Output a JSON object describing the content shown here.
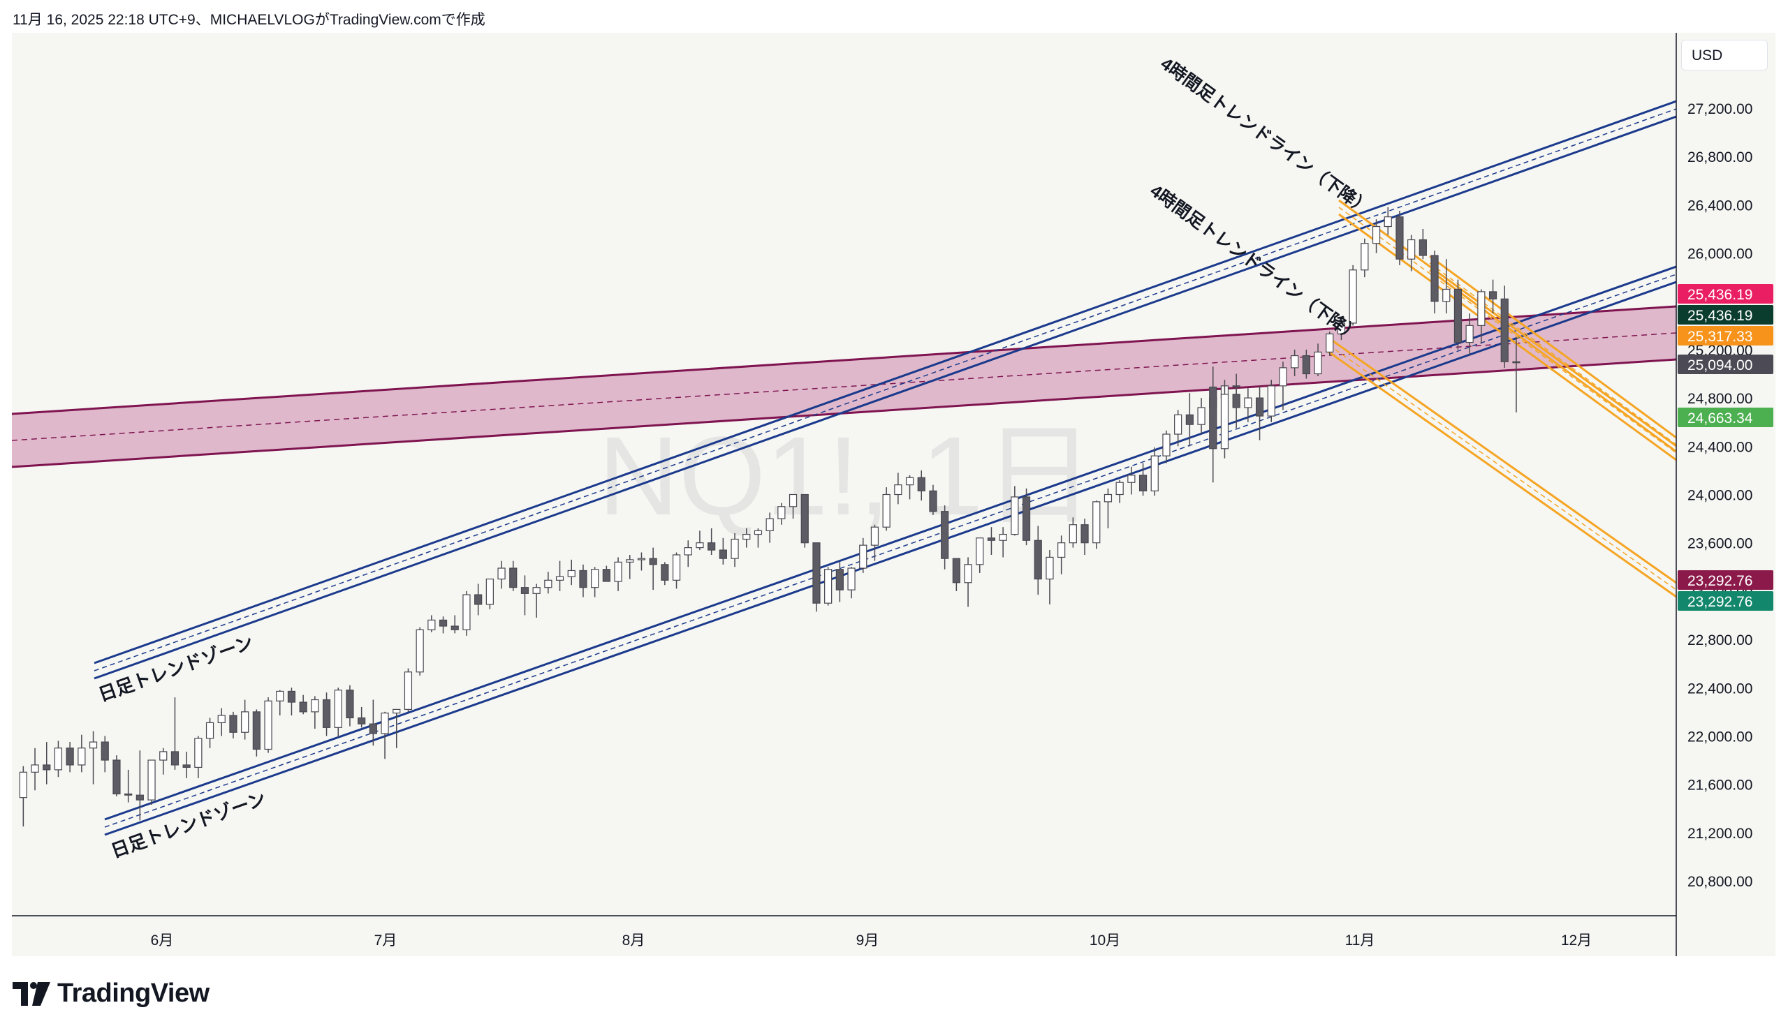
{
  "header": {
    "text": "11月 16, 2025 22:18 UTC+9、MICHAELVLOGがTradingView.comで作成"
  },
  "currency": "USD",
  "watermark": "NQ1!, 1日",
  "brand": {
    "name": "TradingView",
    "icon": "tradingview-logo-icon"
  },
  "colors": {
    "bull_body": "#ffffff",
    "bear_body": "#5d5b63",
    "candle_outline": "#4a4850",
    "trend_blue": "#1b3a8c",
    "zone_fill": "#d9aac0",
    "zone_line": "#7f1450",
    "short_orange": "#f5a524",
    "label_pink": "#e91e63",
    "label_dark_green": "#0b3d2e",
    "label_orange": "#f7931a",
    "label_gray": "#4b4a55",
    "label_green": "#4caf50",
    "label_maroon": "#8b1a4a",
    "label_teal": "#13876b"
  },
  "chart_data": {
    "type": "candlestick",
    "symbol": "NQ1!",
    "interval": "1日",
    "ylim": [
      20500,
      27500
    ],
    "y_ticks": [
      {
        "value": 20800,
        "label": "20,800.00"
      },
      {
        "value": 21200,
        "label": "21,200.00"
      },
      {
        "value": 21600,
        "label": "21,600.00"
      },
      {
        "value": 22000,
        "label": "22,000.00"
      },
      {
        "value": 22400,
        "label": "22,400.00"
      },
      {
        "value": 22800,
        "label": "22,800.00"
      },
      {
        "value": 23200,
        "label": "23,200.00"
      },
      {
        "value": 23600,
        "label": "23,600.00"
      },
      {
        "value": 24000,
        "label": "24,000.00"
      },
      {
        "value": 24400,
        "label": "24,400.00"
      },
      {
        "value": 24800,
        "label": "24,800.00"
      },
      {
        "value": 25200,
        "label": "25,200.00"
      },
      {
        "value": 26000,
        "label": "26,000.00"
      },
      {
        "value": 26400,
        "label": "26,400.00"
      },
      {
        "value": 26800,
        "label": "26,800.00"
      },
      {
        "value": 27200,
        "label": "27,200.00"
      }
    ],
    "x_ticks": [
      {
        "label": "6月",
        "index": 12
      },
      {
        "label": "7月",
        "index": 32
      },
      {
        "label": "8月",
        "index": 54
      },
      {
        "label": "9月",
        "index": 75
      },
      {
        "label": "10月",
        "index": 96
      },
      {
        "label": "11月",
        "index": 119
      },
      {
        "label": "12月",
        "index": 138
      }
    ],
    "price_labels": [
      {
        "value": 25436.19,
        "label": "25,436.19",
        "color": "#e91e63"
      },
      {
        "value": 25436.19,
        "label": "25,436.19",
        "color": "#0b3d2e"
      },
      {
        "value": 25317.33,
        "label": "25,317.33",
        "color": "#f7931a"
      },
      {
        "value": 25094.0,
        "label": "25,094.00",
        "color": "#4b4a55"
      },
      {
        "value": 24663.34,
        "label": "24,663.34",
        "color": "#4caf50"
      },
      {
        "value": 23292.76,
        "label": "23,292.76",
        "color": "#8b1a4a"
      },
      {
        "value": 23292.76,
        "label": "23,292.76",
        "color": "#13876b"
      }
    ],
    "annotations": [
      {
        "text": "日足トレンドゾーン",
        "kind": "upper-channel"
      },
      {
        "text": "日足トレンドゾーン",
        "kind": "lower-channel"
      },
      {
        "text": "4時間足トレンドライン（下降）",
        "kind": "upper-down"
      },
      {
        "text": "4時間足トレンドライン（下降）",
        "kind": "lower-down"
      }
    ],
    "candles": [
      [
        21490,
        21750,
        21250,
        21700
      ],
      [
        21700,
        21900,
        21550,
        21760
      ],
      [
        21760,
        21950,
        21600,
        21720
      ],
      [
        21720,
        21960,
        21660,
        21900
      ],
      [
        21900,
        21950,
        21700,
        21760
      ],
      [
        21760,
        22010,
        21700,
        21900
      ],
      [
        21900,
        22040,
        21600,
        21950
      ],
      [
        21950,
        22000,
        21700,
        21800
      ],
      [
        21800,
        21840,
        21500,
        21520
      ],
      [
        21520,
        21720,
        21450,
        21510
      ],
      [
        21510,
        21880,
        21300,
        21470
      ],
      [
        21470,
        21780,
        21430,
        21800
      ],
      [
        21800,
        21900,
        21680,
        21870
      ],
      [
        21870,
        22320,
        21720,
        21760
      ],
      [
        21760,
        21870,
        21650,
        21740
      ],
      [
        21740,
        22000,
        21650,
        21980
      ],
      [
        21980,
        22150,
        21900,
        22110
      ],
      [
        22110,
        22230,
        22000,
        22170
      ],
      [
        22170,
        22200,
        21980,
        22030
      ],
      [
        22030,
        22300,
        21970,
        22200
      ],
      [
        22200,
        22220,
        21830,
        21890
      ],
      [
        21890,
        22320,
        21860,
        22290
      ],
      [
        22290,
        22380,
        22170,
        22370
      ],
      [
        22370,
        22400,
        22170,
        22280
      ],
      [
        22280,
        22340,
        22180,
        22200
      ],
      [
        22200,
        22330,
        22060,
        22300
      ],
      [
        22300,
        22360,
        22000,
        22070
      ],
      [
        22070,
        22400,
        21990,
        22380
      ],
      [
        22380,
        22420,
        22080,
        22150
      ],
      [
        22150,
        22240,
        22070,
        22100
      ],
      [
        22100,
        22300,
        21920,
        22020
      ],
      [
        22020,
        22200,
        21810,
        22190
      ],
      [
        22190,
        22220,
        21900,
        22220
      ],
      [
        22220,
        22560,
        22200,
        22530
      ],
      [
        22530,
        22900,
        22500,
        22880
      ],
      [
        22880,
        23000,
        22860,
        22960
      ],
      [
        22960,
        22990,
        22850,
        22910
      ],
      [
        22910,
        23000,
        22850,
        22880
      ],
      [
        22880,
        23200,
        22830,
        23170
      ],
      [
        23170,
        23260,
        23000,
        23090
      ],
      [
        23090,
        23300,
        23050,
        23300
      ],
      [
        23300,
        23450,
        23220,
        23390
      ],
      [
        23390,
        23450,
        23200,
        23230
      ],
      [
        23230,
        23330,
        23000,
        23180
      ],
      [
        23180,
        23260,
        22980,
        23230
      ],
      [
        23230,
        23360,
        23180,
        23290
      ],
      [
        23290,
        23450,
        23200,
        23320
      ],
      [
        23320,
        23460,
        23250,
        23370
      ],
      [
        23370,
        23420,
        23150,
        23230
      ],
      [
        23230,
        23400,
        23150,
        23380
      ],
      [
        23380,
        23410,
        23310,
        23280
      ],
      [
        23280,
        23480,
        23200,
        23440
      ],
      [
        23440,
        23500,
        23300,
        23460
      ],
      [
        23460,
        23520,
        23370,
        23470
      ],
      [
        23470,
        23560,
        23210,
        23420
      ],
      [
        23420,
        23440,
        23250,
        23290
      ],
      [
        23290,
        23520,
        23220,
        23500
      ],
      [
        23500,
        23620,
        23400,
        23560
      ],
      [
        23560,
        23700,
        23540,
        23600
      ],
      [
        23600,
        23720,
        23500,
        23540
      ],
      [
        23540,
        23640,
        23420,
        23470
      ],
      [
        23470,
        23680,
        23400,
        23630
      ],
      [
        23630,
        23720,
        23560,
        23670
      ],
      [
        23670,
        23720,
        23560,
        23700
      ],
      [
        23700,
        23850,
        23600,
        23800
      ],
      [
        23800,
        23930,
        23750,
        23900
      ],
      [
        23900,
        24000,
        23800,
        24000
      ],
      [
        24000,
        24000,
        23560,
        23600
      ],
      [
        23600,
        23600,
        23030,
        23100
      ],
      [
        23100,
        23400,
        23080,
        23380
      ],
      [
        23380,
        23440,
        23110,
        23210
      ],
      [
        23210,
        23400,
        23140,
        23390
      ],
      [
        23390,
        23640,
        23350,
        23580
      ],
      [
        23580,
        23750,
        23450,
        23730
      ],
      [
        23730,
        24060,
        23700,
        24000
      ],
      [
        24000,
        24180,
        23920,
        24080
      ],
      [
        24080,
        24160,
        23960,
        24140
      ],
      [
        24140,
        24200,
        23950,
        24030
      ],
      [
        24030,
        24080,
        23830,
        23860
      ],
      [
        23860,
        23910,
        23380,
        23470
      ],
      [
        23470,
        23460,
        23200,
        23270
      ],
      [
        23270,
        23480,
        23070,
        23420
      ],
      [
        23420,
        23640,
        23350,
        23640
      ],
      [
        23640,
        23730,
        23500,
        23620
      ],
      [
        23620,
        23730,
        23480,
        23670
      ],
      [
        23670,
        24070,
        23660,
        23980
      ],
      [
        23980,
        24050,
        23580,
        23620
      ],
      [
        23620,
        23740,
        23170,
        23300
      ],
      [
        23300,
        23540,
        23090,
        23480
      ],
      [
        23480,
        23660,
        23340,
        23600
      ],
      [
        23600,
        23810,
        23560,
        23750
      ],
      [
        23750,
        23800,
        23500,
        23600
      ],
      [
        23600,
        23950,
        23550,
        23940
      ],
      [
        23940,
        24050,
        23720,
        24000
      ],
      [
        24000,
        24120,
        23930,
        24100
      ],
      [
        24100,
        24230,
        24000,
        24160
      ],
      [
        24160,
        24260,
        23990,
        24030
      ],
      [
        24030,
        24390,
        23990,
        24320
      ],
      [
        24320,
        24530,
        24260,
        24500
      ],
      [
        24500,
        24700,
        24400,
        24660
      ],
      [
        24660,
        24840,
        24400,
        24580
      ],
      [
        24580,
        24800,
        24500,
        24720
      ],
      [
        24720,
        24840,
        24680,
        24800
      ],
      [
        24800,
        24950,
        24720,
        24900
      ],
      [
        24900,
        25000,
        24750,
        24890
      ]
    ]
  }
}
